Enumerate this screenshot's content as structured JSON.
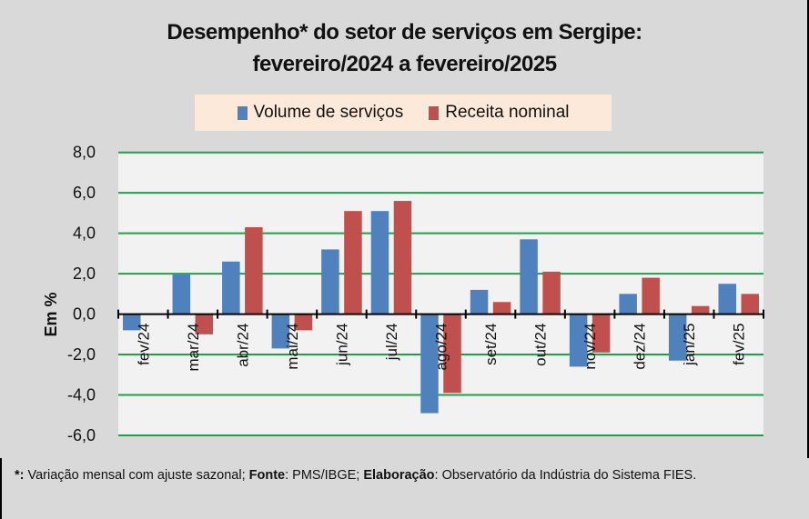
{
  "chart_data": {
    "type": "bar",
    "title": "Desempenho* do setor de serviços em Sergipe:",
    "subtitle": "fevereiro/2024 a fevereiro/2025",
    "xlabel": "",
    "ylabel": "Em %",
    "ylim": [
      -6,
      8
    ],
    "yticks": [
      8,
      6,
      4,
      2,
      0,
      -2,
      -4,
      -6
    ],
    "ytick_labels": [
      "8,0",
      "6,0",
      "4,0",
      "2,0",
      "0,0",
      "-2,0",
      "-4,0",
      "-6,0"
    ],
    "grid": true,
    "legend_position": "top-center",
    "categories": [
      "fev/24",
      "mar/24",
      "abr/24",
      "mai/24",
      "jun/24",
      "jul/24",
      "ago/24",
      "set/24",
      "out/24",
      "nov/24",
      "dez/24",
      "jan/25",
      "fev/25"
    ],
    "series": [
      {
        "name": "Volume de serviços",
        "color": "#4f81bd",
        "values": [
          -0.8,
          2.0,
          2.6,
          -1.7,
          3.2,
          5.1,
          -4.9,
          1.2,
          3.7,
          -2.6,
          1.0,
          -2.3,
          1.5
        ]
      },
      {
        "name": "Receita nominal",
        "color": "#c0504d",
        "values": [
          0.0,
          -1.0,
          4.3,
          -0.8,
          5.1,
          5.6,
          -3.9,
          0.6,
          2.1,
          -1.9,
          1.8,
          0.4,
          1.0
        ]
      }
    ]
  },
  "colors": {
    "gridline": "#21a04a",
    "plot_background": "#f2f2f2",
    "page_background": "#d9d9d9",
    "legend_background": "#fde9d9"
  },
  "footnote": {
    "star_label": "*:",
    "star_text": " Variação mensal com ajuste sazonal; ",
    "source_label": "Fonte",
    "source_text": ": PMS/IBGE; ",
    "authorship_label": "Elaboração",
    "authorship_text": ": Observatório da Indústria do Sistema FIES."
  }
}
